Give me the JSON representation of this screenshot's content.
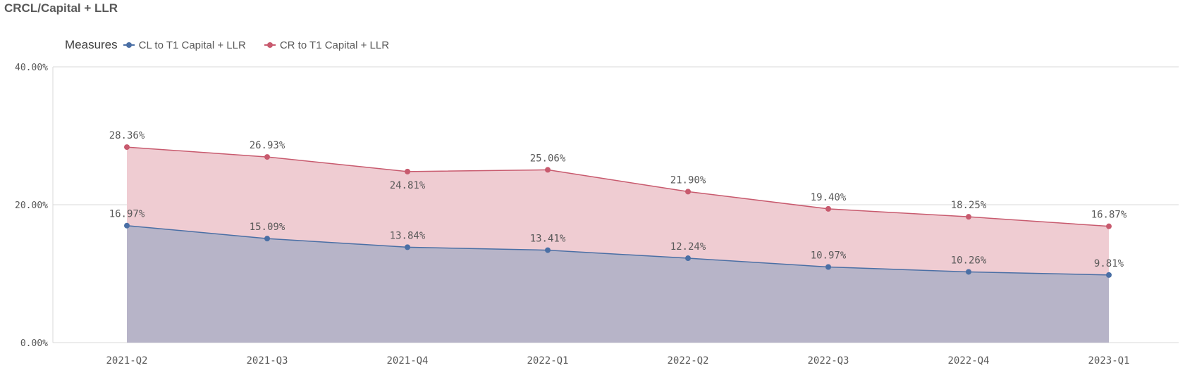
{
  "title": "CRCL/Capital + LLR",
  "legend": {
    "title": "Measures"
  },
  "chart_data": {
    "type": "area",
    "categories": [
      "2021-Q2",
      "2021-Q3",
      "2021-Q4",
      "2022-Q1",
      "2022-Q2",
      "2022-Q3",
      "2022-Q4",
      "2023-Q1"
    ],
    "series": [
      {
        "name": "CL to T1 Capital + LLR",
        "color": "#4a6fa5",
        "fill": "#b7b4c8",
        "values": [
          16.97,
          15.09,
          13.84,
          13.41,
          12.24,
          10.97,
          10.26,
          9.81
        ],
        "labels": [
          "16.97%",
          "15.09%",
          "13.84%",
          "13.41%",
          "12.24%",
          "10.97%",
          "10.26%",
          "9.81%"
        ]
      },
      {
        "name": "CR to T1 Capital + LLR",
        "color": "#c85a6e",
        "fill": "#efccd2",
        "values": [
          28.36,
          26.93,
          24.81,
          25.06,
          21.9,
          19.4,
          18.25,
          16.87
        ],
        "labels": [
          "28.36%",
          "26.93%",
          "24.81%",
          "25.06%",
          "21.90%",
          "19.40%",
          "18.25%",
          "16.87%"
        ]
      }
    ],
    "yticks": [
      {
        "value": 0,
        "label": "0.00%"
      },
      {
        "value": 20,
        "label": "20.00%"
      },
      {
        "value": 40,
        "label": "40.00%"
      }
    ],
    "ylim": [
      0,
      40
    ],
    "grid": true,
    "legend_position": "top-left"
  }
}
